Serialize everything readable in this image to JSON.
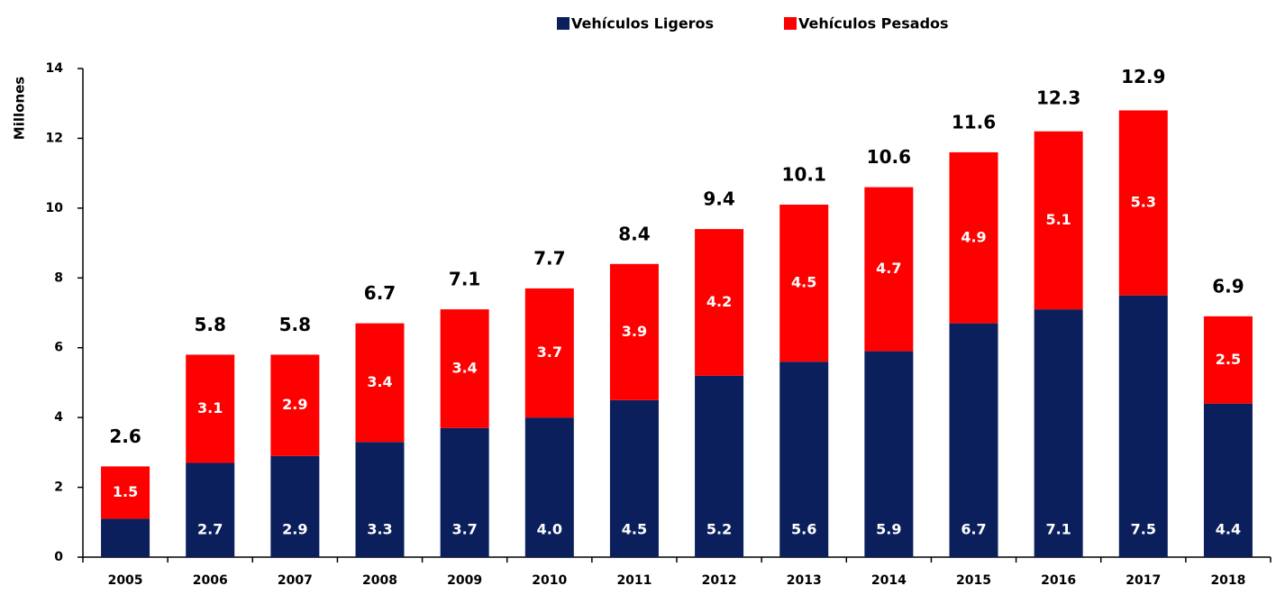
{
  "chart_data": {
    "type": "stacked_bar",
    "y_label": "Millones",
    "categories": [
      "2005",
      "2006",
      "2007",
      "2008",
      "2009",
      "2010",
      "2011",
      "2012",
      "2013",
      "2014",
      "2015",
      "2016",
      "2017",
      "2018"
    ],
    "series": [
      {
        "name": "Vehículos Ligeros",
        "color": "#0b1f5c",
        "values": [
          1.1,
          2.7,
          2.9,
          3.3,
          3.7,
          4.0,
          4.5,
          5.2,
          5.6,
          5.9,
          6.7,
          7.1,
          7.5,
          4.4
        ],
        "value_labels": [
          null,
          "2.7",
          "2.9",
          "3.3",
          "3.7",
          "4.0",
          "4.5",
          "5.2",
          "5.6",
          "5.9",
          "6.7",
          "7.1",
          "7.5",
          "4.4"
        ]
      },
      {
        "name": "Vehículos Pesados",
        "color": "#ff0000",
        "values": [
          1.5,
          3.1,
          2.9,
          3.4,
          3.4,
          3.7,
          3.9,
          4.2,
          4.5,
          4.7,
          4.9,
          5.1,
          5.3,
          2.5
        ]
      }
    ],
    "totals": [
      2.6,
      5.8,
      5.8,
      6.7,
      7.1,
      7.7,
      8.4,
      9.4,
      10.1,
      10.6,
      11.6,
      12.3,
      12.9,
      6.9
    ],
    "ylim": [
      0,
      14
    ],
    "yticks": [
      0,
      2,
      4,
      6,
      8,
      10,
      12,
      14
    ],
    "legend": "top"
  }
}
